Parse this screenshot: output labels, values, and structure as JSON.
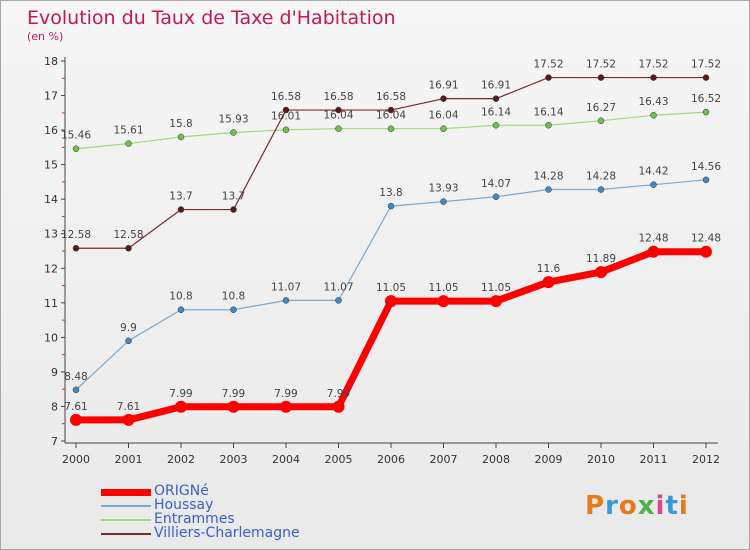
{
  "header": {
    "title": "Evolution du Taux de Taxe d'Habitation",
    "subtitle": "(en %)"
  },
  "logo": {
    "text": "Proxiti",
    "colors": [
      "#e8791a",
      "#3a9ad9",
      "#e8791a",
      "#4caf50",
      "#d94a8c",
      "#3a9ad9",
      "#e8791a"
    ]
  },
  "chart_data": {
    "type": "line",
    "title": "Evolution du Taux de Taxe d'Habitation",
    "subtitle": "(en %)",
    "x": [
      "2000",
      "2001",
      "2002",
      "2003",
      "2004",
      "2005",
      "2006",
      "2007",
      "2008",
      "2009",
      "2010",
      "2011",
      "2012"
    ],
    "ylim": [
      7,
      18
    ],
    "yticks": [
      "7",
      "8",
      "9",
      "10",
      "11",
      "12",
      "13",
      "14",
      "15",
      "16",
      "17",
      "18"
    ],
    "grid": false,
    "legend_position": "bottom-left",
    "series": [
      {
        "name": "ORIGNé",
        "color": "#ff0000",
        "marker": "#ff0000",
        "width": 7,
        "radius": 6,
        "values": [
          7.61,
          7.61,
          7.99,
          7.99,
          7.99,
          7.99,
          11.05,
          11.05,
          11.05,
          11.6,
          11.89,
          12.48,
          12.48
        ],
        "labels": [
          "7.61",
          "7.61",
          "7.99",
          "7.99",
          "7.99",
          "7.99",
          "11.05",
          "11.05",
          "11.05",
          "11.6",
          "11.89",
          "12.48",
          "12.48"
        ]
      },
      {
        "name": "Houssay",
        "color": "#7aa9d2",
        "marker": "#3d8ac9",
        "width": 1.2,
        "radius": 3,
        "values": [
          8.48,
          9.9,
          10.8,
          10.8,
          11.07,
          11.07,
          13.8,
          13.93,
          14.07,
          14.28,
          14.28,
          14.42,
          14.56
        ],
        "labels": [
          "8.48",
          "9.9",
          "10.8",
          "10.8",
          "11.07",
          "11.07",
          "13.8",
          "13.93",
          "14.07",
          "14.28",
          "14.28",
          "14.42",
          "14.56"
        ]
      },
      {
        "name": "Entrammes",
        "color": "#9ddc7a",
        "marker": "#6cc24a",
        "width": 1.2,
        "radius": 3,
        "values": [
          15.46,
          15.61,
          15.8,
          15.93,
          16.01,
          16.04,
          16.04,
          16.04,
          16.14,
          16.14,
          16.27,
          16.43,
          16.52
        ],
        "labels": [
          "15.46",
          "15.61",
          "15.8",
          "15.93",
          "16.01",
          "16.04",
          "16.04",
          "16.04",
          "16.14",
          "16.14",
          "16.27",
          "16.43",
          "16.52"
        ]
      },
      {
        "name": "Villiers-Charlemagne",
        "color": "#7a2b2b",
        "marker": "#5a1a1a",
        "width": 1.2,
        "radius": 3,
        "values": [
          12.58,
          12.58,
          13.7,
          13.7,
          16.58,
          16.58,
          16.58,
          16.91,
          16.91,
          17.52,
          17.52,
          17.52,
          17.52
        ],
        "labels": [
          "12.58",
          "12.58",
          "13.7",
          "13.7",
          "16.58",
          "16.58",
          "16.58",
          "16.91",
          "16.91",
          "17.52",
          "17.52",
          "17.52",
          "17.52"
        ]
      }
    ]
  }
}
